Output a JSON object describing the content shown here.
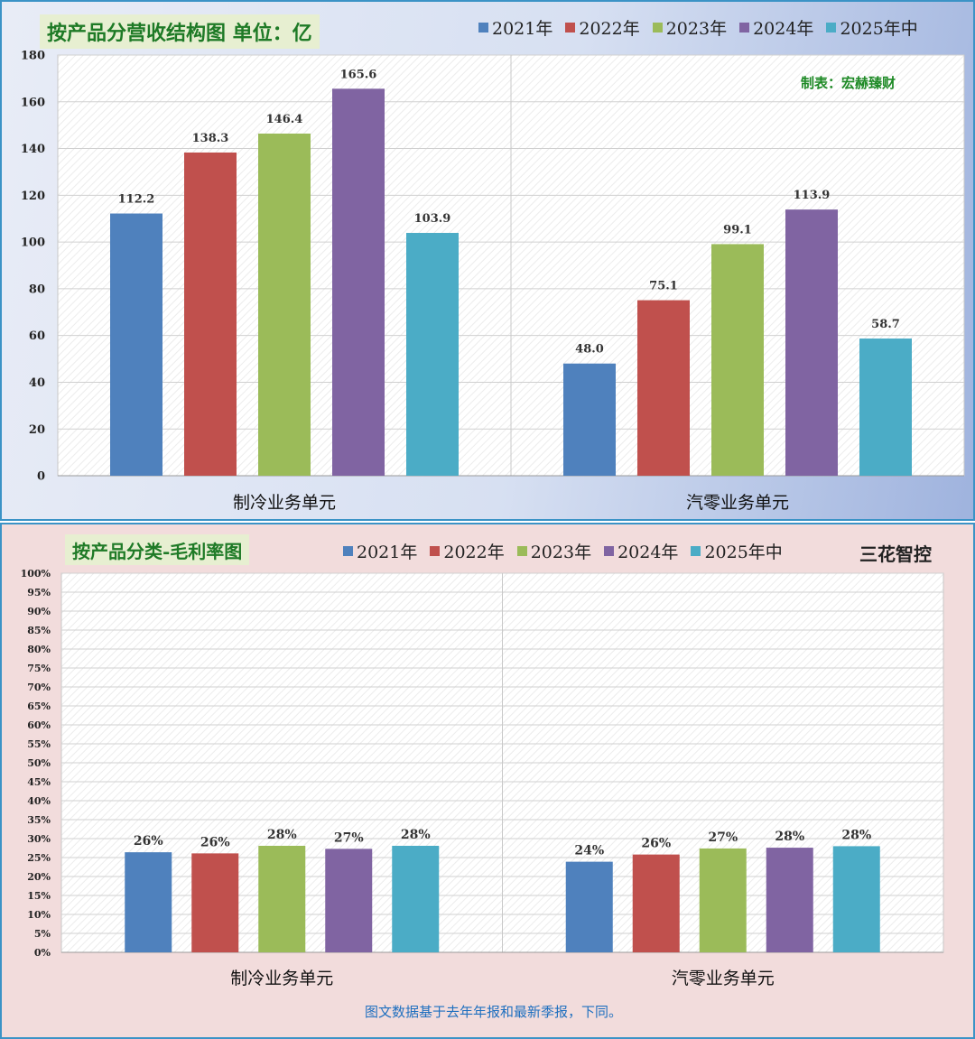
{
  "chart_data": [
    {
      "type": "bar",
      "title": "按产品分营收结构图 单位：亿",
      "categories": [
        "制冷业务单元",
        "汽零业务单元"
      ],
      "series": [
        {
          "name": "2021年",
          "color": "#4f81bd",
          "values": [
            112.2,
            48.0
          ],
          "labels": [
            "112.2",
            "48.0"
          ]
        },
        {
          "name": "2022年",
          "color": "#c0504d",
          "values": [
            138.3,
            75.1
          ],
          "labels": [
            "138.3",
            "75.1"
          ]
        },
        {
          "name": "2023年",
          "color": "#9bbb59",
          "values": [
            146.4,
            99.1
          ],
          "labels": [
            "146.4",
            "99.1"
          ]
        },
        {
          "name": "2024年",
          "color": "#8064a2",
          "values": [
            165.6,
            113.9
          ],
          "labels": [
            "165.6",
            "113.9"
          ]
        },
        {
          "name": "2025年中",
          "color": "#4bacc6",
          "values": [
            103.9,
            58.7
          ],
          "labels": [
            "103.9",
            "58.7"
          ]
        }
      ],
      "ylim": [
        0,
        180
      ],
      "yticks": [
        "0",
        "20",
        "40",
        "60",
        "80",
        "100",
        "120",
        "140",
        "160",
        "180"
      ],
      "grid": true,
      "legend": "top-right",
      "credit": "制表：宏赫臻财"
    },
    {
      "type": "bar",
      "title": "按产品分类-毛利率图",
      "categories": [
        "制冷业务单元",
        "汽零业务单元"
      ],
      "series": [
        {
          "name": "2021年",
          "color": "#4f81bd",
          "values": [
            26.4,
            23.9
          ],
          "labels": [
            "26%",
            "24%"
          ]
        },
        {
          "name": "2022年",
          "color": "#c0504d",
          "values": [
            26.1,
            25.8
          ],
          "labels": [
            "26%",
            "26%"
          ]
        },
        {
          "name": "2023年",
          "color": "#9bbb59",
          "values": [
            28.1,
            27.4
          ],
          "labels": [
            "28%",
            "27%"
          ]
        },
        {
          "name": "2024年",
          "color": "#8064a2",
          "values": [
            27.3,
            27.6
          ],
          "labels": [
            "27%",
            "28%"
          ]
        },
        {
          "name": "2025年中",
          "color": "#4bacc6",
          "values": [
            28.1,
            28.0
          ],
          "labels": [
            "28%",
            "28%"
          ]
        }
      ],
      "ylim": [
        0,
        100
      ],
      "yticks": [
        "0%",
        "5%",
        "10%",
        "15%",
        "20%",
        "25%",
        "30%",
        "35%",
        "40%",
        "45%",
        "50%",
        "55%",
        "60%",
        "65%",
        "70%",
        "75%",
        "80%",
        "85%",
        "90%",
        "95%",
        "100%"
      ],
      "grid": true,
      "legend": "top",
      "brand": "三花智控",
      "note": "图文数据基于去年年报和最新季报，下同。"
    }
  ]
}
